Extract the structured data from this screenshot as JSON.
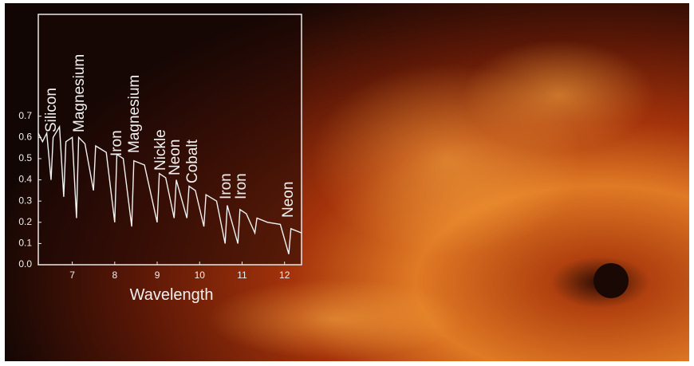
{
  "chart_data": {
    "type": "line",
    "x_label": "Wavelength",
    "annotations": [
      "Silicon",
      "Magnesium",
      "Iron",
      "Magnesium",
      "Nickle",
      "Neon",
      "Cobalt",
      "Iron",
      "Iron",
      "Neon"
    ],
    "x": [
      6.2,
      6.3,
      6.4,
      6.5,
      6.55,
      6.7,
      6.8,
      6.85,
      7.0,
      7.1,
      7.15,
      7.3,
      7.5,
      7.55,
      7.8,
      8.0,
      8.05,
      8.2,
      8.4,
      8.45,
      8.7,
      9.0,
      9.05,
      9.2,
      9.4,
      9.45,
      9.7,
      9.75,
      9.9,
      10.1,
      10.15,
      10.4,
      10.6,
      10.65,
      10.9,
      10.95,
      11.1,
      11.3,
      11.35,
      11.6,
      11.9,
      12.1,
      12.15,
      12.4
    ],
    "series": [
      {
        "color": "#f2f2f2",
        "values": [
          0.62,
          0.58,
          0.62,
          0.4,
          0.6,
          0.65,
          0.32,
          0.58,
          0.6,
          0.22,
          0.6,
          0.57,
          0.35,
          0.56,
          0.53,
          0.2,
          0.52,
          0.5,
          0.18,
          0.49,
          0.47,
          0.2,
          0.43,
          0.41,
          0.22,
          0.4,
          0.22,
          0.37,
          0.35,
          0.18,
          0.33,
          0.3,
          0.1,
          0.28,
          0.1,
          0.26,
          0.24,
          0.15,
          0.22,
          0.2,
          0.19,
          0.05,
          0.17,
          0.15
        ]
      }
    ],
    "xlim": [
      6.2,
      12.4
    ],
    "xticks": [
      7,
      8,
      9,
      10,
      11,
      12
    ],
    "ylim": [
      0,
      1.18
    ],
    "yticks": [
      {
        "value": 0,
        "label": "0.0"
      },
      0.1,
      0.2,
      0.3,
      0.4,
      0.5,
      0.6,
      0.7
    ]
  }
}
